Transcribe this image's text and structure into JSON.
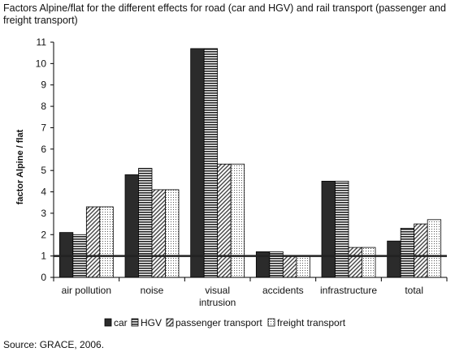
{
  "title": "Factors Alpine/flat for the different effects for road (car and HGV) and rail transport (passenger and freight transport)",
  "source": "Source: GRACE, 2006.",
  "chart_data": {
    "type": "bar",
    "ylabel": "factor Alpine / flat",
    "xlabel": "",
    "ylim": [
      0,
      11
    ],
    "yticks": [
      0,
      1,
      2,
      3,
      4,
      5,
      6,
      7,
      8,
      9,
      10,
      11
    ],
    "categories": [
      [
        "air pollution"
      ],
      [
        "noise"
      ],
      [
        "visual",
        "intrusion"
      ],
      [
        "accidents"
      ],
      [
        "infrastructure"
      ],
      [
        "total"
      ]
    ],
    "series": [
      {
        "name": "car",
        "pattern": "solid",
        "values": [
          2.1,
          4.8,
          10.7,
          1.2,
          4.5,
          1.7
        ]
      },
      {
        "name": "HGV",
        "pattern": "horizontal-lines",
        "values": [
          2.0,
          5.1,
          10.7,
          1.2,
          4.5,
          2.3
        ]
      },
      {
        "name": "passenger transport",
        "pattern": "diagonal",
        "values": [
          3.3,
          4.1,
          5.3,
          1.0,
          1.4,
          2.5
        ]
      },
      {
        "name": "freight transport",
        "pattern": "dots",
        "values": [
          3.3,
          4.1,
          5.3,
          1.0,
          1.4,
          2.7
        ]
      }
    ],
    "reference_line": 1,
    "grid": false,
    "legend_position": "bottom"
  }
}
